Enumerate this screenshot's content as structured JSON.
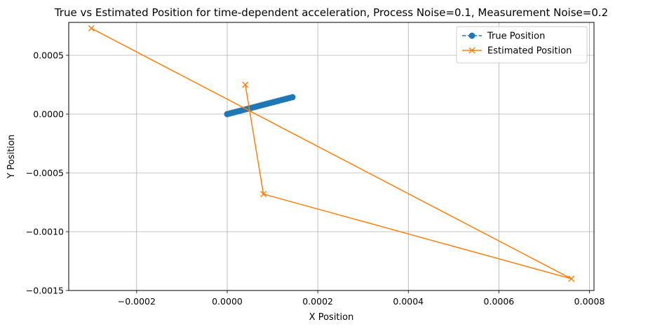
{
  "chart_data": {
    "type": "line",
    "title": "True vs Estimated Position for time-dependent acceleration, Process Noise=0.1, Measurement Noise=0.2",
    "xlabel": "X Position",
    "ylabel": "Y Position",
    "xlim": [
      -0.00035,
      0.00081
    ],
    "ylim": [
      -0.0015,
      0.00078
    ],
    "xticks": [
      {
        "value": -0.0002,
        "label": "−0.0002"
      },
      {
        "value": 0.0,
        "label": "0.0000"
      },
      {
        "value": 0.0002,
        "label": "0.0002"
      },
      {
        "value": 0.0004,
        "label": "0.0004"
      },
      {
        "value": 0.0006,
        "label": "0.0006"
      },
      {
        "value": 0.0008,
        "label": "0.0008"
      }
    ],
    "yticks": [
      {
        "value": 0.0005,
        "label": "0.0005"
      },
      {
        "value": 0.0,
        "label": "0.0000"
      },
      {
        "value": -0.0005,
        "label": "−0.0005"
      },
      {
        "value": -0.001,
        "label": "−0.0010"
      },
      {
        "value": -0.0015,
        "label": "−0.0015"
      }
    ],
    "grid": true,
    "legend_position": "top-right",
    "series": [
      {
        "name": "True Position",
        "color": "#1f77b4",
        "marker": "circle",
        "line_style": "dashed",
        "x": [
          0.0,
          6e-06,
          1.2e-05,
          1.8e-05,
          2.4e-05,
          3e-05,
          3.6e-05,
          4.2e-05,
          4.8e-05,
          5.4e-05,
          6e-05,
          6.6e-05,
          7.2e-05,
          7.8e-05,
          8.4e-05,
          9e-05,
          9.6e-05,
          0.000102,
          0.000108,
          0.000114,
          0.00012,
          0.000126,
          0.000132,
          0.000138,
          0.000144
        ],
        "y": [
          0.0,
          6e-06,
          1.2e-05,
          1.8e-05,
          2.4e-05,
          3e-05,
          3.6e-05,
          4.2e-05,
          4.8e-05,
          5.4e-05,
          6e-05,
          6.6e-05,
          7.2e-05,
          7.8e-05,
          8.4e-05,
          9e-05,
          9.6e-05,
          0.000102,
          0.000108,
          0.000114,
          0.00012,
          0.000126,
          0.000132,
          0.000138,
          0.000144
        ]
      },
      {
        "name": "Estimated Position",
        "color": "#ff7f0e",
        "marker": "x",
        "line_style": "solid",
        "x": [
          -0.0003,
          0.00076,
          8e-05,
          4e-05
        ],
        "y": [
          0.00073,
          -0.0014,
          -0.00068,
          0.00025
        ]
      }
    ]
  }
}
